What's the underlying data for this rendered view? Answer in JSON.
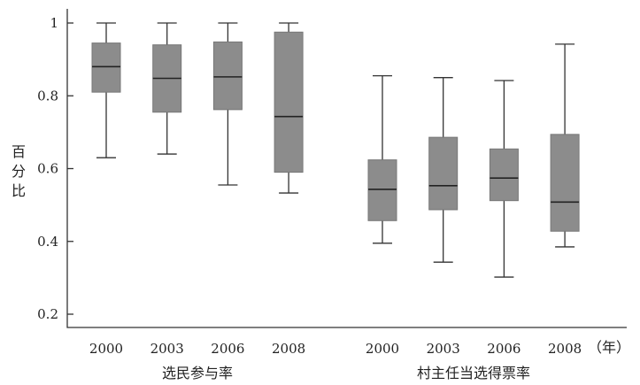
{
  "chart_data": {
    "type": "boxplot",
    "ylabel": "百分比",
    "ylim": [
      0.2,
      1.0
    ],
    "yticks": [
      "0.2",
      "0.4",
      "0.6",
      "0.8",
      "1"
    ],
    "x_unit_label": "（年）",
    "groups": [
      {
        "name": "选民参与率",
        "boxes": [
          {
            "label": "2000",
            "min": 0.63,
            "q1": 0.81,
            "median": 0.88,
            "q3": 0.945,
            "max": 1.0
          },
          {
            "label": "2003",
            "min": 0.64,
            "q1": 0.755,
            "median": 0.848,
            "q3": 0.94,
            "max": 1.0
          },
          {
            "label": "2006",
            "min": 0.555,
            "q1": 0.762,
            "median": 0.852,
            "q3": 0.948,
            "max": 1.0
          },
          {
            "label": "2008",
            "min": 0.533,
            "q1": 0.59,
            "median": 0.743,
            "q3": 0.975,
            "max": 1.0
          }
        ]
      },
      {
        "name": "村主任当选得票率",
        "boxes": [
          {
            "label": "2000",
            "min": 0.395,
            "q1": 0.457,
            "median": 0.543,
            "q3": 0.624,
            "max": 0.855
          },
          {
            "label": "2003",
            "min": 0.343,
            "q1": 0.487,
            "median": 0.553,
            "q3": 0.686,
            "max": 0.85
          },
          {
            "label": "2006",
            "min": 0.302,
            "q1": 0.512,
            "median": 0.574,
            "q3": 0.654,
            "max": 0.842
          },
          {
            "label": "2008",
            "min": 0.385,
            "q1": 0.428,
            "median": 0.508,
            "q3": 0.694,
            "max": 0.942
          }
        ]
      }
    ]
  }
}
